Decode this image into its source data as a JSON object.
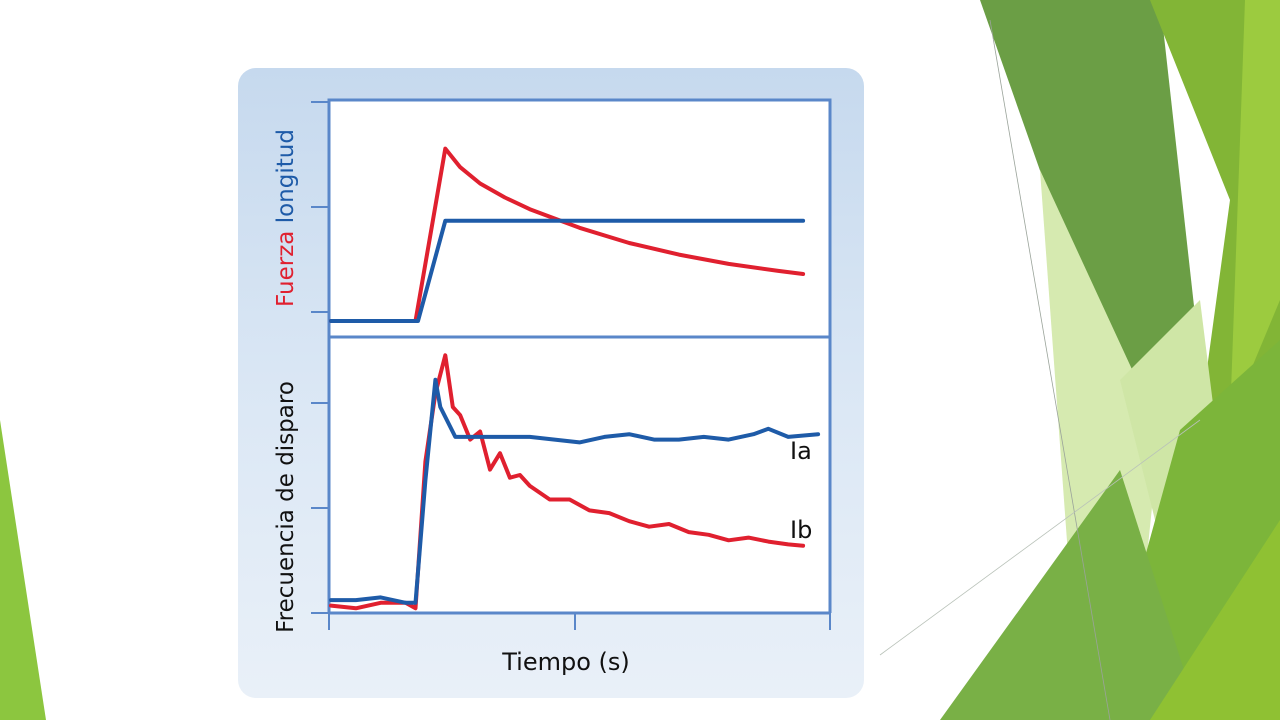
{
  "theme": {
    "background": "#ffffff",
    "card_gradient_top": "#c6d9ee",
    "card_gradient_bottom": "#e9f0f8",
    "axis_color": "#5a87c9",
    "red": "#e0202f",
    "blue": "#1e5ba8",
    "green_dark": "#5f9b3c",
    "green_mid": "#77b532",
    "green_light": "#9ccb3f",
    "green_pale": "#d6eab0"
  },
  "chart_data": [
    {
      "type": "line",
      "panel": "top",
      "ylabel_parts": [
        {
          "text": "Fuerza",
          "color": "#e0202f"
        },
        {
          "text": " longitud",
          "color": "#1e5ba8"
        }
      ],
      "xlim": [
        0,
        10
      ],
      "ylim": [
        0,
        10
      ],
      "series": [
        {
          "color": "#e0202f",
          "x": [
            0,
            1.7,
            2.3,
            2.6,
            3.0,
            3.5,
            4.0,
            4.5,
            5.0,
            6.0,
            7.0,
            8.0,
            9.0,
            9.5
          ],
          "y": [
            0.6,
            0.6,
            8.0,
            7.2,
            6.5,
            5.9,
            5.4,
            5.0,
            4.6,
            3.95,
            3.45,
            3.05,
            2.75,
            2.62
          ]
        },
        {
          "color": "#1e5ba8",
          "x": [
            0,
            1.75,
            2.3,
            9.5
          ],
          "y": [
            0.6,
            0.6,
            4.9,
            4.9
          ]
        }
      ]
    },
    {
      "type": "line",
      "panel": "bottom",
      "xlabel": "Tiempo (s)",
      "ylabel": "Frecuencia de disparo",
      "xlim": [
        0,
        10
      ],
      "ylim": [
        0,
        10
      ],
      "series": [
        {
          "name": "Ib",
          "color": "#e0202f",
          "x": [
            0,
            0.5,
            1.0,
            1.5,
            1.7,
            1.9,
            2.1,
            2.3,
            2.45,
            2.6,
            2.8,
            3.0,
            3.2,
            3.4,
            3.6,
            3.8,
            4.0,
            4.4,
            4.8,
            5.2,
            5.6,
            6.0,
            6.4,
            6.8,
            7.2,
            7.6,
            8.0,
            8.4,
            8.8,
            9.2,
            9.5
          ],
          "y": [
            0.2,
            0.1,
            0.3,
            0.3,
            0.1,
            5.5,
            8.0,
            9.4,
            7.5,
            7.2,
            6.3,
            6.6,
            5.2,
            5.8,
            4.9,
            5.0,
            4.6,
            4.1,
            4.1,
            3.7,
            3.6,
            3.3,
            3.1,
            3.2,
            2.9,
            2.8,
            2.6,
            2.7,
            2.55,
            2.45,
            2.4
          ]
        },
        {
          "name": "Ia",
          "color": "#1e5ba8",
          "x": [
            0,
            0.5,
            1.0,
            1.5,
            1.7,
            1.9,
            2.1,
            2.2,
            2.5,
            3.0,
            3.5,
            4.0,
            4.5,
            5.0,
            5.5,
            6.0,
            6.5,
            7.0,
            7.5,
            8.0,
            8.5,
            8.8,
            9.2,
            9.8
          ],
          "y": [
            0.4,
            0.4,
            0.5,
            0.3,
            0.3,
            4.8,
            8.5,
            7.5,
            6.4,
            6.4,
            6.4,
            6.4,
            6.3,
            6.2,
            6.4,
            6.5,
            6.3,
            6.3,
            6.4,
            6.3,
            6.5,
            6.7,
            6.4,
            6.5
          ]
        }
      ],
      "annotations": [
        {
          "text": "Ia",
          "x": 9.2,
          "y": 7.4
        },
        {
          "text": "Ib",
          "x": 9.2,
          "y": 3.5
        }
      ]
    }
  ]
}
